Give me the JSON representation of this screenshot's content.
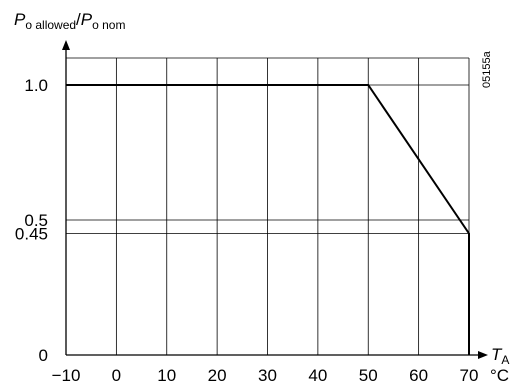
{
  "chart_data": {
    "type": "line",
    "x_ticks": [
      "−10",
      "0",
      "10",
      "20",
      "30",
      "40",
      "50",
      "60",
      "70"
    ],
    "x_tick_values": [
      -10,
      0,
      10,
      20,
      30,
      40,
      50,
      60,
      70
    ],
    "y_ticks": [
      "0",
      "0.45",
      "0.5",
      "1.0"
    ],
    "y_tick_values": [
      0,
      0.45,
      0.5,
      1.0
    ],
    "xlim": [
      -10,
      70
    ],
    "ylim": [
      0,
      1.1
    ],
    "grid": true,
    "series": [
      {
        "x": [
          -10,
          50,
          70,
          70
        ],
        "y": [
          1.0,
          1.0,
          0.45,
          0
        ]
      }
    ],
    "ylabel": {
      "main": "P",
      "sub": "o allowed",
      "sep": "/",
      "main2": "P",
      "sub2": "o nom"
    },
    "xlabel": {
      "main": "T",
      "sub": "A"
    },
    "x_unit": "°C",
    "figure_code": "05155a"
  }
}
